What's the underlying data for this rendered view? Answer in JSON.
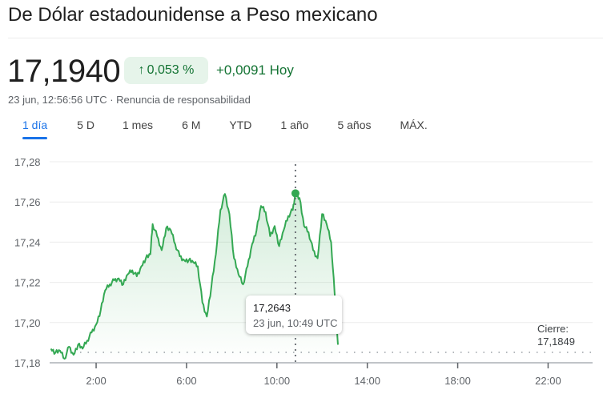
{
  "header": {
    "title": "De Dólar estadounidense a Peso mexicano"
  },
  "quote": {
    "price": "17,1940",
    "percent_change": "0,053 %",
    "arrow_icon": "arrow-up-icon",
    "abs_change": "+0,0091 Hoy",
    "timestamp": "23 jun, 12:56:56 UTC",
    "separator": " · ",
    "disclaimer_link": "Renuncia de responsabilidad"
  },
  "tabs": [
    {
      "label": "1 día",
      "active": true
    },
    {
      "label": "5 D"
    },
    {
      "label": "1 mes"
    },
    {
      "label": "6 M"
    },
    {
      "label": "YTD"
    },
    {
      "label": "1 año"
    },
    {
      "label": "5 años"
    },
    {
      "label": "MÁX."
    }
  ],
  "tooltip": {
    "value": "17,2643",
    "time": "23 jun, 10:49 UTC"
  },
  "close": {
    "label": "Cierre:",
    "value": "17,1849"
  },
  "colors": {
    "line": "#34a853",
    "positive_text": "#137333",
    "pill_bg": "#e6f4ea",
    "active_tab": "#1a73e8"
  },
  "chart_data": {
    "type": "line",
    "title": "De Dólar estadounidense a Peso mexicano (1 día)",
    "xlabel": "",
    "ylabel": "",
    "y_ticks": [
      "17,28",
      "17,26",
      "17,24",
      "17,22",
      "17,20",
      "17,18"
    ],
    "x_ticks": [
      "2:00",
      "6:00",
      "10:00",
      "14:00",
      "18:00",
      "22:00"
    ],
    "ylim": [
      17.18,
      17.28
    ],
    "xlim_hours": [
      0,
      24
    ],
    "grid": true,
    "legend": false,
    "previous_close": 17.1849,
    "highlight": {
      "x": 10.82,
      "y": 17.2643,
      "label": "23 jun, 10:49 UTC"
    },
    "x": [
      0.0,
      0.2,
      0.4,
      0.6,
      0.8,
      1.0,
      1.2,
      1.4,
      1.6,
      1.8,
      2.0,
      2.2,
      2.4,
      2.6,
      2.8,
      3.0,
      3.2,
      3.4,
      3.6,
      3.8,
      4.0,
      4.2,
      4.4,
      4.5,
      4.7,
      4.9,
      5.1,
      5.3,
      5.5,
      5.7,
      5.9,
      6.1,
      6.3,
      6.5,
      6.7,
      6.9,
      7.1,
      7.3,
      7.5,
      7.7,
      7.9,
      8.1,
      8.3,
      8.5,
      8.7,
      8.9,
      9.1,
      9.3,
      9.5,
      9.7,
      9.9,
      10.1,
      10.3,
      10.5,
      10.7,
      10.82,
      11.0,
      11.2,
      11.4,
      11.6,
      11.8,
      12.0,
      12.2,
      12.4,
      12.55,
      12.7
    ],
    "values": [
      17.187,
      17.185,
      17.186,
      17.182,
      17.188,
      17.184,
      17.189,
      17.187,
      17.191,
      17.195,
      17.199,
      17.206,
      17.216,
      17.219,
      17.221,
      17.222,
      17.219,
      17.224,
      17.226,
      17.223,
      17.228,
      17.232,
      17.234,
      17.249,
      17.243,
      17.236,
      17.247,
      17.246,
      17.239,
      17.233,
      17.231,
      17.231,
      17.23,
      17.228,
      17.21,
      17.203,
      17.218,
      17.234,
      17.256,
      17.264,
      17.254,
      17.232,
      17.224,
      17.219,
      17.228,
      17.239,
      17.246,
      17.258,
      17.255,
      17.243,
      17.248,
      17.238,
      17.246,
      17.253,
      17.256,
      17.2643,
      17.262,
      17.248,
      17.245,
      17.236,
      17.232,
      17.254,
      17.249,
      17.24,
      17.215,
      17.189
    ]
  }
}
